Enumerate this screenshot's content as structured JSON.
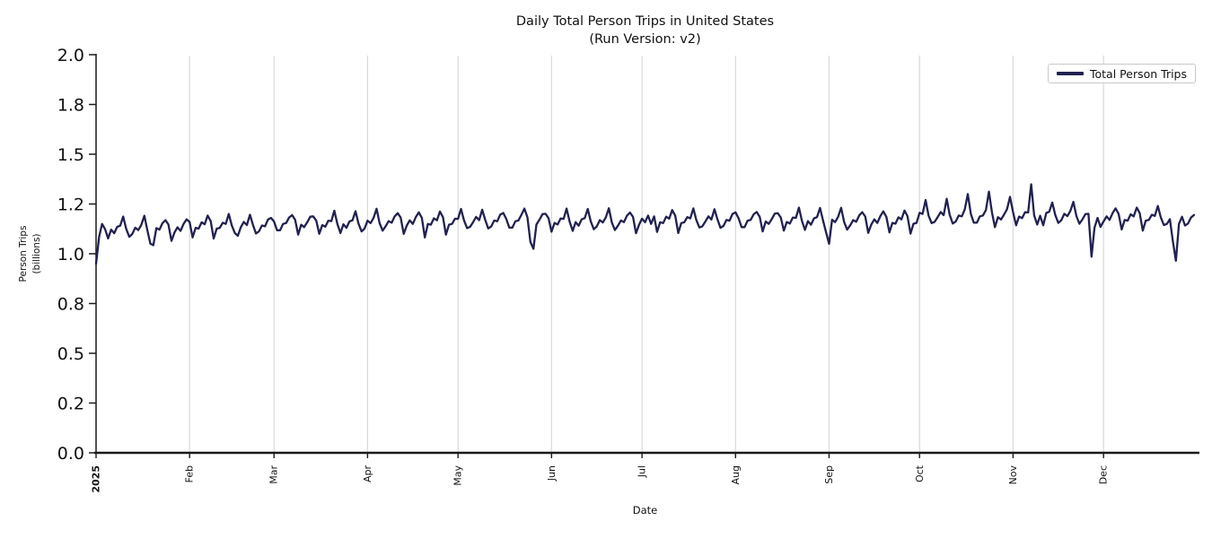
{
  "chart_data": {
    "type": "line",
    "title": "Daily Total Person Trips in United States",
    "subtitle": "(Run Version: v2)",
    "xlabel": "Date",
    "ylabel_line1": "Person Trips",
    "ylabel_line2": "(billions)",
    "ylim": [
      0.0,
      2.0
    ],
    "grid": "vertical-only",
    "y_ticks": [
      {
        "value": 0.0,
        "label": "0.0"
      },
      {
        "value": 0.25,
        "label": "0.2"
      },
      {
        "value": 0.5,
        "label": "0.5"
      },
      {
        "value": 0.75,
        "label": "0.8"
      },
      {
        "value": 1.0,
        "label": "1.0"
      },
      {
        "value": 1.25,
        "label": "1.2"
      },
      {
        "value": 1.5,
        "label": "1.5"
      },
      {
        "value": 1.75,
        "label": "1.8"
      },
      {
        "value": 2.0,
        "label": "2.0"
      }
    ],
    "x_ticks": [
      {
        "label": "2025",
        "day": 0,
        "bold": true
      },
      {
        "label": "Feb",
        "day": 31,
        "bold": false
      },
      {
        "label": "Mar",
        "day": 59,
        "bold": false
      },
      {
        "label": "Apr",
        "day": 90,
        "bold": false
      },
      {
        "label": "May",
        "day": 120,
        "bold": false
      },
      {
        "label": "Jun",
        "day": 151,
        "bold": false
      },
      {
        "label": "Jul",
        "day": 181,
        "bold": false
      },
      {
        "label": "Aug",
        "day": 212,
        "bold": false
      },
      {
        "label": "Sep",
        "day": 243,
        "bold": false
      },
      {
        "label": "Oct",
        "day": 273,
        "bold": false
      },
      {
        "label": "Nov",
        "day": 304,
        "bold": false
      },
      {
        "label": "Dec",
        "day": 334,
        "bold": false
      }
    ],
    "legend": {
      "position": "upper-right",
      "entries": [
        "Total Person Trips"
      ]
    },
    "colors": {
      "line": "#212150",
      "grid": "#d9d9d9",
      "axis": "#1a1a1a",
      "legend_border": "#c9c9c9",
      "background": "#ffffff"
    },
    "series": [
      {
        "name": "Total Person Trips",
        "x_start": "2025",
        "frequency": "daily",
        "num_points": 365,
        "values": [
          0.95,
          1.085,
          1.15,
          1.123,
          1.077,
          1.121,
          1.103,
          1.135,
          1.141,
          1.187,
          1.125,
          1.085,
          1.099,
          1.131,
          1.119,
          1.145,
          1.191,
          1.119,
          1.051,
          1.043,
          1.129,
          1.121,
          1.153,
          1.169,
          1.147,
          1.065,
          1.107,
          1.133,
          1.115,
          1.149,
          1.173,
          1.16,
          1.082,
          1.13,
          1.126,
          1.158,
          1.148,
          1.192,
          1.164,
          1.076,
          1.126,
          1.13,
          1.156,
          1.15,
          1.2,
          1.142,
          1.104,
          1.09,
          1.134,
          1.16,
          1.144,
          1.196,
          1.146,
          1.102,
          1.112,
          1.142,
          1.138,
          1.172,
          1.18,
          1.162,
          1.118,
          1.118,
          1.15,
          1.154,
          1.182,
          1.194,
          1.17,
          1.096,
          1.146,
          1.134,
          1.158,
          1.186,
          1.188,
          1.166,
          1.1,
          1.144,
          1.136,
          1.166,
          1.164,
          1.216,
          1.15,
          1.104,
          1.148,
          1.13,
          1.162,
          1.168,
          1.214,
          1.152,
          1.112,
          1.126,
          1.166,
          1.154,
          1.18,
          1.226,
          1.154,
          1.116,
          1.138,
          1.164,
          1.156,
          1.188,
          1.204,
          1.182,
          1.1,
          1.142,
          1.168,
          1.15,
          1.184,
          1.208,
          1.18,
          1.082,
          1.15,
          1.146,
          1.178,
          1.168,
          1.212,
          1.184,
          1.096,
          1.146,
          1.15,
          1.176,
          1.175,
          1.225,
          1.167,
          1.129,
          1.135,
          1.159,
          1.185,
          1.169,
          1.221,
          1.171,
          1.127,
          1.137,
          1.167,
          1.163,
          1.197,
          1.205,
          1.175,
          1.131,
          1.131,
          1.163,
          1.167,
          1.195,
          1.227,
          1.183,
          1.059,
          1.025,
          1.147,
          1.171,
          1.199,
          1.201,
          1.179,
          1.111,
          1.155,
          1.147,
          1.177,
          1.175,
          1.227,
          1.161,
          1.115,
          1.159,
          1.141,
          1.173,
          1.179,
          1.225,
          1.163,
          1.123,
          1.137,
          1.169,
          1.157,
          1.183,
          1.229,
          1.157,
          1.119,
          1.141,
          1.167,
          1.159,
          1.191,
          1.207,
          1.185,
          1.103,
          1.145,
          1.176,
          1.158,
          1.192,
          1.15,
          1.188,
          1.11,
          1.158,
          1.154,
          1.186,
          1.176,
          1.22,
          1.192,
          1.104,
          1.154,
          1.158,
          1.184,
          1.178,
          1.228,
          1.17,
          1.132,
          1.138,
          1.162,
          1.188,
          1.172,
          1.224,
          1.174,
          1.13,
          1.14,
          1.17,
          1.166,
          1.2,
          1.208,
          1.178,
          1.134,
          1.134,
          1.166,
          1.17,
          1.198,
          1.21,
          1.186,
          1.112,
          1.162,
          1.15,
          1.174,
          1.202,
          1.204,
          1.182,
          1.116,
          1.16,
          1.152,
          1.182,
          1.18,
          1.232,
          1.166,
          1.12,
          1.164,
          1.146,
          1.178,
          1.184,
          1.23,
          1.168,
          1.108,
          1.05,
          1.171,
          1.159,
          1.185,
          1.231,
          1.159,
          1.121,
          1.143,
          1.169,
          1.161,
          1.193,
          1.209,
          1.187,
          1.105,
          1.147,
          1.173,
          1.155,
          1.189,
          1.213,
          1.185,
          1.107,
          1.155,
          1.151,
          1.183,
          1.173,
          1.217,
          1.189,
          1.101,
          1.151,
          1.155,
          1.206,
          1.2,
          1.27,
          1.192,
          1.154,
          1.16,
          1.184,
          1.21,
          1.194,
          1.276,
          1.196,
          1.152,
          1.162,
          1.192,
          1.188,
          1.222,
          1.3,
          1.2,
          1.156,
          1.156,
          1.188,
          1.192,
          1.22,
          1.312,
          1.208,
          1.134,
          1.184,
          1.172,
          1.196,
          1.224,
          1.286,
          1.209,
          1.143,
          1.187,
          1.179,
          1.209,
          1.207,
          1.349,
          1.193,
          1.147,
          1.191,
          1.143,
          1.205,
          1.211,
          1.257,
          1.195,
          1.155,
          1.169,
          1.201,
          1.189,
          1.215,
          1.261,
          1.189,
          1.151,
          1.173,
          1.199,
          1.201,
          0.985,
          1.13,
          1.18,
          1.135,
          1.162,
          1.188,
          1.17,
          1.204,
          1.228,
          1.2,
          1.122,
          1.17,
          1.166,
          1.198,
          1.188,
          1.232,
          1.204,
          1.116,
          1.166,
          1.17,
          1.196,
          1.19,
          1.24,
          1.182,
          1.144,
          1.15,
          1.174,
          1.06,
          0.965,
          1.15,
          1.186,
          1.142,
          1.152,
          1.182,
          1.195
        ]
      }
    ]
  }
}
